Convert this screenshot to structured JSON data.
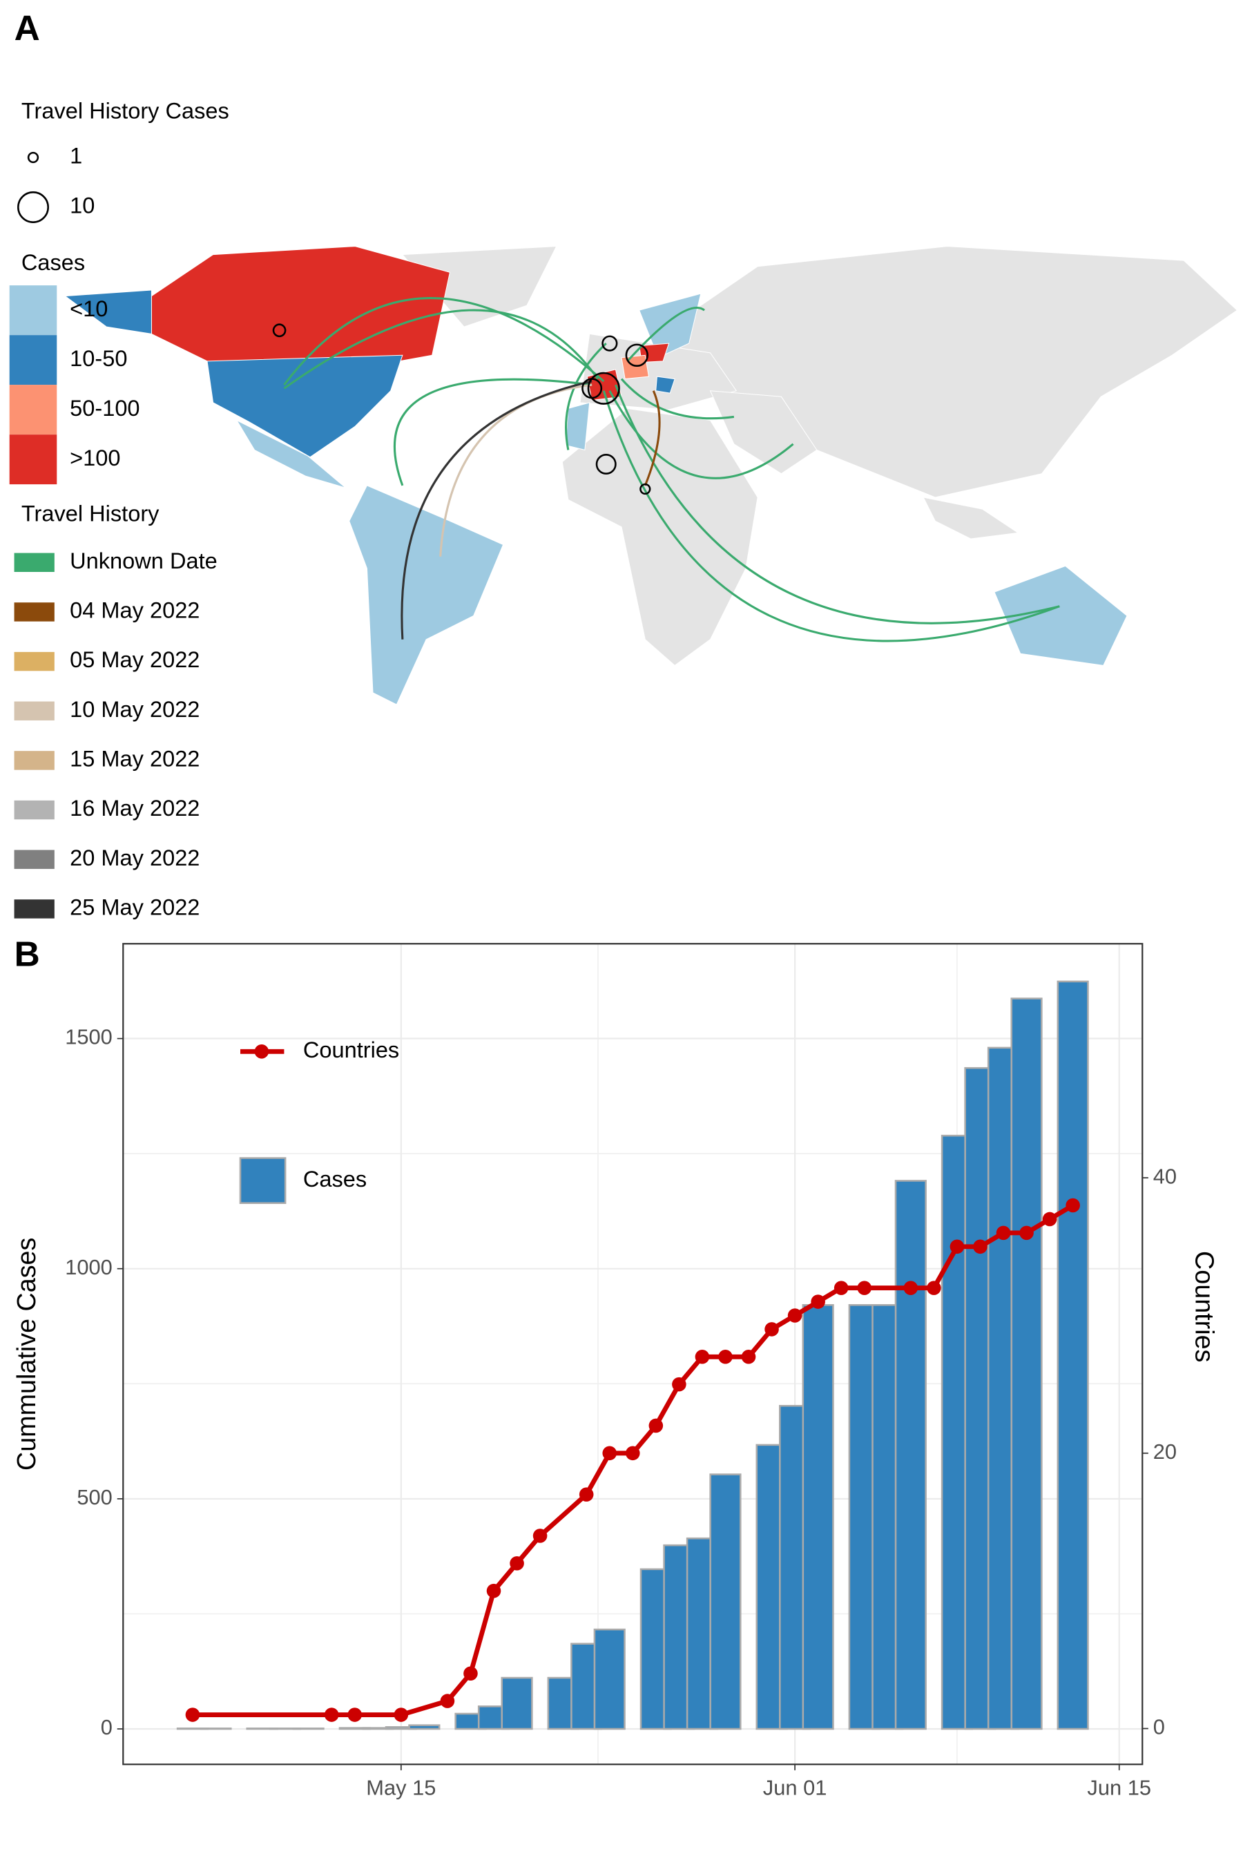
{
  "panel_a": {
    "label": "A",
    "size_legend": {
      "title": "Travel History Cases",
      "values": [
        1,
        10
      ]
    },
    "case_legend": {
      "title": "Cases",
      "labels": [
        "<10",
        "10-50",
        "50-100",
        ">100"
      ],
      "colors": [
        "#9ecae1",
        "#3182bd",
        "#fc9272",
        "#de2d26"
      ]
    },
    "travel_legend": {
      "title": "Travel History",
      "labels": [
        "Unknown Date",
        "04 May 2022",
        "05 May 2022",
        "10 May 2022",
        "15 May 2022",
        "16 May 2022",
        "20 May 2022",
        "25 May 2022"
      ],
      "colors": [
        "#3aaa6e",
        "#8b4a0c",
        "#dcb063",
        "#d5c4b0",
        "#d4b48a",
        "#b3b3b3",
        "#808080",
        "#333333"
      ]
    }
  },
  "panel_b_label": "B",
  "chart_data": {
    "type": "bar",
    "y_label": "Cummulative Cases",
    "y2_label": "Countries",
    "xlim": [
      "May 03",
      "Jun 16"
    ],
    "xticks": [
      "May 15",
      "Jun 01",
      "Jun 15"
    ],
    "ylim": [
      -77,
      1706
    ],
    "yticks": [
      0,
      500,
      1000,
      1500
    ],
    "y2lim": [
      -2.6,
      57
    ],
    "y2ticks": [
      0,
      20,
      40
    ],
    "grid": true,
    "series": [
      {
        "name": "Cases",
        "type": "bar",
        "color": "#3182bd",
        "x": [
          "May 06",
          "May 07",
          "May 09",
          "May 10",
          "May 11",
          "May 13",
          "May 14",
          "May 15",
          "May 16",
          "May 18",
          "May 19",
          "May 20",
          "May 22",
          "May 23",
          "May 24",
          "May 26",
          "May 27",
          "May 28",
          "May 29",
          "May 31",
          "Jun 01",
          "Jun 02",
          "Jun 04",
          "Jun 05",
          "Jun 06",
          "Jun 08",
          "Jun 09",
          "Jun 10",
          "Jun 11",
          "Jun 13"
        ],
        "values": [
          1,
          1,
          1,
          1,
          1,
          2,
          2,
          4,
          8,
          33,
          49,
          111,
          111,
          185,
          216,
          347,
          399,
          414,
          553,
          617,
          702,
          921,
          921,
          921,
          1191,
          1289,
          1436,
          1480,
          1587,
          1624
        ]
      },
      {
        "name": "Countries",
        "type": "line",
        "axis": "y2",
        "color": "#cc0000",
        "x": [
          "May 06",
          "May 12",
          "May 13",
          "May 15",
          "May 17",
          "May 18",
          "May 19",
          "May 20",
          "May 21",
          "May 23",
          "May 24",
          "May 25",
          "May 26",
          "May 27",
          "May 28",
          "May 29",
          "May 30",
          "May 31",
          "Jun 01",
          "Jun 02",
          "Jun 03",
          "Jun 04",
          "Jun 06",
          "Jun 07",
          "Jun 08",
          "Jun 09",
          "Jun 10",
          "Jun 11",
          "Jun 12",
          "Jun 13"
        ],
        "values": [
          1,
          1,
          1,
          1,
          2,
          4,
          10,
          12,
          14,
          17,
          20,
          20,
          22,
          25,
          27,
          27,
          27,
          29,
          30,
          31,
          32,
          32,
          32,
          32,
          35,
          35,
          36,
          36,
          37,
          38
        ]
      }
    ]
  }
}
